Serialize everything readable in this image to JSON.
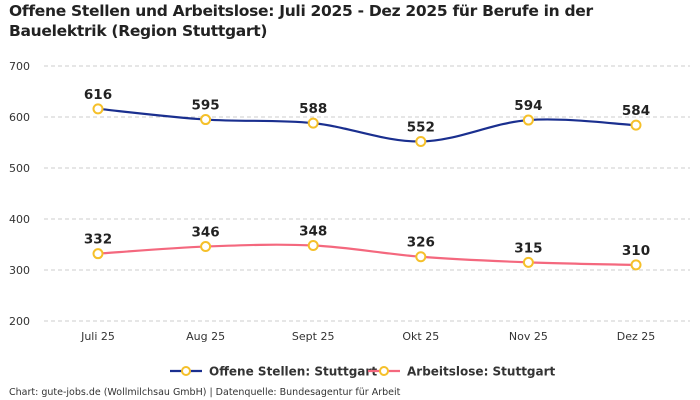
{
  "chart_data": {
    "type": "line",
    "title": "Offene Stellen und Arbeitslose: Juli 2025 - Dez 2025 für Berufe in der Bauelektrik (Region Stuttgart)",
    "categories": [
      "Juli 25",
      "Aug 25",
      "Sept 25",
      "Okt 25",
      "Nov 25",
      "Dez 25"
    ],
    "ylim": [
      200,
      700
    ],
    "yticks": [
      200,
      300,
      400,
      500,
      600,
      700
    ],
    "grid": true,
    "legend_position": "bottom",
    "series": [
      {
        "name": "Offene Stellen: Stuttgart",
        "values": [
          616,
          595,
          588,
          552,
          594,
          584
        ],
        "color": "#1a2f8f"
      },
      {
        "name": "Arbeitslose: Stuttgart",
        "values": [
          332,
          346,
          348,
          326,
          315,
          310
        ],
        "color": "#f4687e"
      }
    ],
    "marker_color": "#f5c02a"
  },
  "footer": "Chart: gute-jobs.de (Wollmilchsau GmbH) | Datenquelle: Bundesagentur für Arbeit"
}
